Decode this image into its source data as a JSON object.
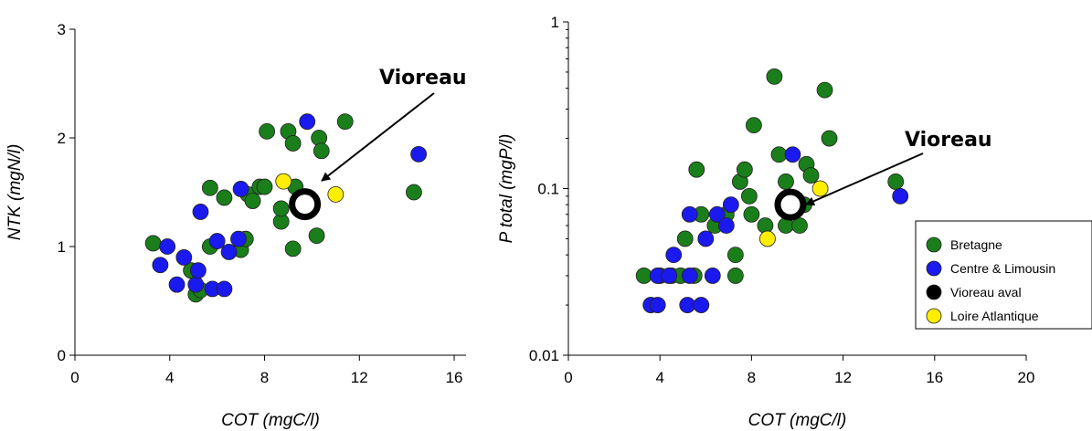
{
  "colors": {
    "Bretagne": "#1a7f1a",
    "Centre & Limousin": "#1a1aee",
    "Vioreau aval": "#000000",
    "Loire Atlantique": "#ffee00",
    "highlight_stroke": "#000000"
  },
  "legend": {
    "placement": "right",
    "entries": [
      "Bretagne",
      "Centre & Limousin",
      "Vioreau aval",
      "Loire Atlantique"
    ]
  },
  "chart_data": [
    {
      "type": "scatter",
      "xlabel": "COT (mgC/l)",
      "ylabel": "NTK (mgN/l)",
      "xlim": [
        0,
        16.5
      ],
      "ylim": [
        0,
        3
      ],
      "xticks": [
        "0",
        "4",
        "8",
        "12",
        "16"
      ],
      "yticks": [
        "0",
        "1",
        "2",
        "3"
      ],
      "yscale": "linear",
      "annotation": {
        "text": "Vioreau",
        "target": [
          9.7,
          1.39
        ]
      },
      "highlight": {
        "series": "Vioreau aval",
        "x": 9.7,
        "y": 1.39
      },
      "series": [
        {
          "name": "Bretagne",
          "points": [
            [
              3.3,
              1.03
            ],
            [
              4.9,
              0.78
            ],
            [
              5.1,
              0.56
            ],
            [
              5.3,
              0.6
            ],
            [
              5.7,
              1.0
            ],
            [
              5.7,
              1.54
            ],
            [
              6.3,
              1.45
            ],
            [
              7.0,
              0.97
            ],
            [
              7.2,
              1.07
            ],
            [
              7.3,
              1.48
            ],
            [
              7.5,
              1.42
            ],
            [
              7.8,
              1.55
            ],
            [
              8.0,
              1.55
            ],
            [
              8.1,
              2.06
            ],
            [
              8.7,
              1.23
            ],
            [
              8.7,
              1.35
            ],
            [
              9.0,
              2.06
            ],
            [
              9.2,
              1.95
            ],
            [
              9.2,
              0.98
            ],
            [
              9.3,
              1.55
            ],
            [
              10.2,
              1.1
            ],
            [
              10.3,
              2.0
            ],
            [
              10.4,
              1.88
            ],
            [
              11.4,
              2.15
            ],
            [
              14.3,
              1.5
            ]
          ]
        },
        {
          "name": "Centre & Limousin",
          "points": [
            [
              3.6,
              0.83
            ],
            [
              3.9,
              1.0
            ],
            [
              4.3,
              0.65
            ],
            [
              4.6,
              0.9
            ],
            [
              5.1,
              0.65
            ],
            [
              5.2,
              0.78
            ],
            [
              5.3,
              1.32
            ],
            [
              5.8,
              0.61
            ],
            [
              6.0,
              1.05
            ],
            [
              6.3,
              0.61
            ],
            [
              6.5,
              0.95
            ],
            [
              6.9,
              1.07
            ],
            [
              7.0,
              1.53
            ],
            [
              9.8,
              2.15
            ],
            [
              14.5,
              1.85
            ]
          ]
        },
        {
          "name": "Loire Atlantique",
          "points": [
            [
              8.8,
              1.6
            ],
            [
              11.0,
              1.48
            ]
          ]
        }
      ]
    },
    {
      "type": "scatter",
      "xlabel": "COT (mgC/l)",
      "ylabel": "P total (mgP/l)",
      "xlim": [
        0,
        20
      ],
      "ylim": [
        0.01,
        1
      ],
      "xticks": [
        "0",
        "4",
        "8",
        "12",
        "16",
        "20"
      ],
      "yticks": [
        "0.01",
        "0.1",
        "1"
      ],
      "yscale": "log",
      "annotation": {
        "text": "Vioreau",
        "target": [
          9.7,
          0.08
        ]
      },
      "highlight": {
        "series": "Vioreau aval",
        "x": 9.7,
        "y": 0.08
      },
      "series": [
        {
          "name": "Bretagne",
          "points": [
            [
              3.3,
              0.03
            ],
            [
              4.0,
              0.03
            ],
            [
              4.5,
              0.03
            ],
            [
              4.9,
              0.03
            ],
            [
              5.1,
              0.05
            ],
            [
              5.5,
              0.03
            ],
            [
              5.6,
              0.13
            ],
            [
              5.8,
              0.07
            ],
            [
              6.4,
              0.06
            ],
            [
              6.9,
              0.07
            ],
            [
              7.3,
              0.03
            ],
            [
              7.3,
              0.04
            ],
            [
              7.5,
              0.11
            ],
            [
              7.7,
              0.13
            ],
            [
              7.9,
              0.09
            ],
            [
              8.0,
              0.07
            ],
            [
              8.1,
              0.24
            ],
            [
              8.6,
              0.06
            ],
            [
              9.0,
              0.47
            ],
            [
              9.2,
              0.16
            ],
            [
              9.5,
              0.06
            ],
            [
              9.5,
              0.11
            ],
            [
              10.1,
              0.06
            ],
            [
              10.3,
              0.08
            ],
            [
              10.4,
              0.14
            ],
            [
              10.6,
              0.12
            ],
            [
              11.2,
              0.39
            ],
            [
              11.4,
              0.2
            ],
            [
              14.3,
              0.11
            ]
          ]
        },
        {
          "name": "Centre & Limousin",
          "points": [
            [
              3.6,
              0.02
            ],
            [
              3.9,
              0.02
            ],
            [
              3.9,
              0.03
            ],
            [
              4.4,
              0.03
            ],
            [
              4.6,
              0.04
            ],
            [
              5.2,
              0.02
            ],
            [
              5.3,
              0.07
            ],
            [
              5.3,
              0.03
            ],
            [
              5.8,
              0.02
            ],
            [
              6.0,
              0.05
            ],
            [
              6.3,
              0.03
            ],
            [
              6.5,
              0.07
            ],
            [
              6.9,
              0.06
            ],
            [
              7.1,
              0.08
            ],
            [
              9.8,
              0.16
            ],
            [
              14.5,
              0.09
            ]
          ]
        },
        {
          "name": "Loire Atlantique",
          "points": [
            [
              8.7,
              0.05
            ],
            [
              11.0,
              0.1
            ]
          ]
        }
      ]
    }
  ]
}
